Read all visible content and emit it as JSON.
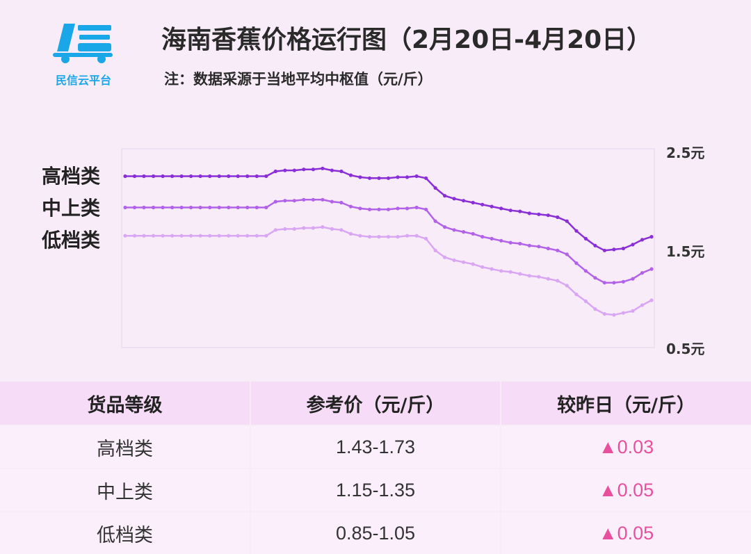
{
  "brand": {
    "name": "民信云平台",
    "icon": "truck-logo-icon",
    "color": "#1aa7e8"
  },
  "title": "海南香蕉价格运行图（2月20日-4月20日）",
  "note": "注：数据采源于当地平均中枢值（元/斤）",
  "chart_data": {
    "type": "line",
    "y_axis_side": "right",
    "ylim": [
      0.5,
      2.5
    ],
    "y_ticks": [
      "2.5元",
      "1.5元",
      "0.5元"
    ],
    "grid": false,
    "legend_position": "left",
    "series": [
      {
        "name": "高档类",
        "color": "#8a2ed8",
        "values": [
          2.24,
          2.24,
          2.24,
          2.24,
          2.24,
          2.24,
          2.24,
          2.24,
          2.24,
          2.24,
          2.24,
          2.24,
          2.24,
          2.24,
          2.24,
          2.24,
          2.29,
          2.3,
          2.3,
          2.31,
          2.31,
          2.32,
          2.3,
          2.29,
          2.25,
          2.23,
          2.22,
          2.22,
          2.22,
          2.23,
          2.23,
          2.24,
          2.22,
          2.12,
          2.04,
          2.01,
          1.99,
          1.97,
          1.95,
          1.93,
          1.91,
          1.89,
          1.88,
          1.86,
          1.85,
          1.84,
          1.82,
          1.78,
          1.68,
          1.6,
          1.53,
          1.48,
          1.49,
          1.5,
          1.54,
          1.59,
          1.62
        ]
      },
      {
        "name": "中上类",
        "color": "#b262e8",
        "values": [
          1.92,
          1.92,
          1.92,
          1.92,
          1.92,
          1.92,
          1.92,
          1.92,
          1.92,
          1.92,
          1.92,
          1.92,
          1.92,
          1.92,
          1.92,
          1.92,
          1.98,
          1.99,
          1.99,
          2.0,
          2.0,
          2.0,
          1.98,
          1.97,
          1.93,
          1.91,
          1.9,
          1.9,
          1.9,
          1.91,
          1.91,
          1.92,
          1.9,
          1.78,
          1.72,
          1.69,
          1.67,
          1.65,
          1.62,
          1.6,
          1.58,
          1.56,
          1.55,
          1.53,
          1.52,
          1.5,
          1.48,
          1.44,
          1.35,
          1.27,
          1.2,
          1.15,
          1.15,
          1.16,
          1.19,
          1.25,
          1.29
        ]
      },
      {
        "name": "低档类",
        "color": "#d8a6f2",
        "values": [
          1.63,
          1.63,
          1.63,
          1.63,
          1.63,
          1.63,
          1.63,
          1.63,
          1.63,
          1.63,
          1.63,
          1.63,
          1.63,
          1.63,
          1.63,
          1.63,
          1.69,
          1.7,
          1.7,
          1.71,
          1.71,
          1.72,
          1.7,
          1.69,
          1.65,
          1.63,
          1.62,
          1.62,
          1.62,
          1.62,
          1.63,
          1.63,
          1.6,
          1.48,
          1.41,
          1.38,
          1.36,
          1.34,
          1.31,
          1.29,
          1.27,
          1.26,
          1.24,
          1.22,
          1.21,
          1.19,
          1.17,
          1.12,
          1.03,
          0.96,
          0.88,
          0.83,
          0.82,
          0.84,
          0.86,
          0.92,
          0.97
        ]
      }
    ]
  },
  "table": {
    "headers": [
      "货品等级",
      "参考价（元/斤）",
      "较昨日（元/斤）"
    ],
    "rows": [
      {
        "grade": "高档类",
        "price": "1.43-1.73",
        "change": "▲0.03"
      },
      {
        "grade": "中上类",
        "price": "1.15-1.35",
        "change": "▲0.05"
      },
      {
        "grade": "低档类",
        "price": "0.85-1.05",
        "change": "▲0.05"
      }
    ],
    "change_color": "#e8509e"
  }
}
